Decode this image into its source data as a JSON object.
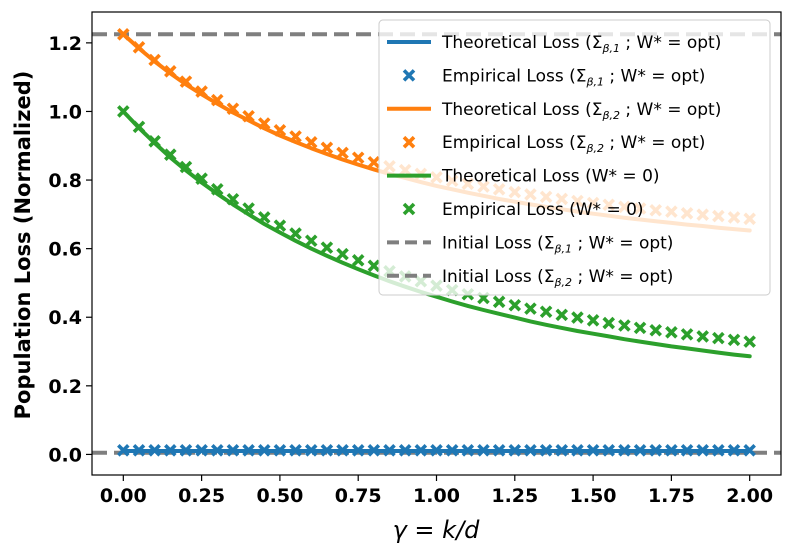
{
  "chart_data": {
    "type": "line",
    "title": "",
    "xlabel": "γ = k/d",
    "ylabel": "Population Loss (Normalized)",
    "xlim": [
      -0.1,
      2.1
    ],
    "ylim": [
      -0.06,
      1.29
    ],
    "x_ticks": [
      0.0,
      0.25,
      0.5,
      0.75,
      1.0,
      1.25,
      1.5,
      1.75,
      2.0
    ],
    "x_tick_labels": [
      "0.00",
      "0.25",
      "0.50",
      "0.75",
      "1.00",
      "1.25",
      "1.50",
      "1.75",
      "2.00"
    ],
    "y_ticks": [
      0.0,
      0.2,
      0.4,
      0.6,
      0.8,
      1.0,
      1.2
    ],
    "y_tick_labels": [
      "0.0",
      "0.2",
      "0.4",
      "0.6",
      "0.8",
      "1.0",
      "1.2"
    ],
    "grid": false,
    "legend_position": "top-right",
    "x": [
      0.0,
      0.05,
      0.1,
      0.15,
      0.2,
      0.25,
      0.3,
      0.35,
      0.4,
      0.45,
      0.5,
      0.55,
      0.6,
      0.65,
      0.7,
      0.75,
      0.8,
      0.85,
      0.9,
      0.95,
      1.0,
      1.05,
      1.1,
      1.15,
      1.2,
      1.25,
      1.3,
      1.35,
      1.4,
      1.45,
      1.5,
      1.55,
      1.6,
      1.65,
      1.7,
      1.75,
      1.8,
      1.85,
      1.9,
      1.95,
      2.0
    ],
    "series": [
      {
        "name": "Theoretical Loss",
        "label_suffix": "β,1 ; W* = opt",
        "kind": "line",
        "color": "#1f77b4",
        "values": [
          0.01,
          0.01,
          0.01,
          0.01,
          0.01,
          0.01,
          0.01,
          0.01,
          0.01,
          0.01,
          0.01,
          0.01,
          0.01,
          0.01,
          0.01,
          0.01,
          0.01,
          0.01,
          0.01,
          0.01,
          0.01,
          0.01,
          0.01,
          0.01,
          0.01,
          0.01,
          0.01,
          0.01,
          0.01,
          0.01,
          0.01,
          0.01,
          0.01,
          0.01,
          0.01,
          0.01,
          0.01,
          0.01,
          0.01,
          0.01,
          0.01
        ]
      },
      {
        "name": "Empirical Loss",
        "label_suffix": "β,1 ; W* = opt",
        "kind": "marker",
        "color": "#1f77b4",
        "values": [
          0.012,
          0.012,
          0.012,
          0.012,
          0.012,
          0.012,
          0.012,
          0.012,
          0.012,
          0.012,
          0.012,
          0.012,
          0.012,
          0.012,
          0.012,
          0.012,
          0.012,
          0.012,
          0.012,
          0.012,
          0.012,
          0.012,
          0.012,
          0.012,
          0.012,
          0.012,
          0.012,
          0.012,
          0.012,
          0.012,
          0.012,
          0.012,
          0.012,
          0.012,
          0.012,
          0.012,
          0.012,
          0.012,
          0.012,
          0.012,
          0.012
        ]
      },
      {
        "name": "Theoretical Loss",
        "label_suffix": "β,2 ; W* = opt",
        "kind": "line",
        "color": "#ff7f0e",
        "values": [
          1.225,
          1.184,
          1.146,
          1.111,
          1.079,
          1.05,
          1.023,
          0.997,
          0.974,
          0.951,
          0.93,
          0.911,
          0.893,
          0.876,
          0.86,
          0.845,
          0.831,
          0.818,
          0.806,
          0.794,
          0.783,
          0.773,
          0.763,
          0.754,
          0.745,
          0.737,
          0.729,
          0.722,
          0.715,
          0.708,
          0.702,
          0.696,
          0.69,
          0.685,
          0.68,
          0.675,
          0.67,
          0.666,
          0.661,
          0.657,
          0.653
        ]
      },
      {
        "name": "Empirical Loss",
        "label_suffix": "β,2 ; W* = opt",
        "kind": "marker",
        "color": "#ff7f0e",
        "values": [
          1.225,
          1.187,
          1.15,
          1.117,
          1.087,
          1.058,
          1.033,
          1.008,
          0.986,
          0.965,
          0.945,
          0.927,
          0.91,
          0.894,
          0.879,
          0.865,
          0.852,
          0.84,
          0.829,
          0.818,
          0.808,
          0.798,
          0.789,
          0.781,
          0.773,
          0.765,
          0.758,
          0.751,
          0.745,
          0.739,
          0.733,
          0.728,
          0.722,
          0.717,
          0.712,
          0.708,
          0.703,
          0.699,
          0.695,
          0.691,
          0.687
        ]
      },
      {
        "name": "Theoretical Loss",
        "label_suffix": "W* = 0",
        "kind": "line",
        "color": "#2ca02c",
        "values": [
          1.0,
          0.952,
          0.908,
          0.866,
          0.828,
          0.793,
          0.76,
          0.729,
          0.7,
          0.672,
          0.647,
          0.623,
          0.6,
          0.579,
          0.559,
          0.54,
          0.522,
          0.505,
          0.489,
          0.474,
          0.46,
          0.446,
          0.433,
          0.421,
          0.41,
          0.399,
          0.388,
          0.378,
          0.369,
          0.36,
          0.352,
          0.344,
          0.336,
          0.329,
          0.322,
          0.315,
          0.309,
          0.303,
          0.297,
          0.291,
          0.286
        ]
      },
      {
        "name": "Empirical Loss",
        "label_suffix": "W* = 0",
        "kind": "marker",
        "color": "#2ca02c",
        "values": [
          1.0,
          0.955,
          0.913,
          0.874,
          0.838,
          0.804,
          0.773,
          0.744,
          0.717,
          0.691,
          0.667,
          0.644,
          0.623,
          0.603,
          0.584,
          0.566,
          0.55,
          0.534,
          0.519,
          0.505,
          0.492,
          0.479,
          0.467,
          0.456,
          0.445,
          0.435,
          0.425,
          0.416,
          0.407,
          0.399,
          0.391,
          0.383,
          0.376,
          0.369,
          0.362,
          0.356,
          0.35,
          0.344,
          0.339,
          0.334,
          0.329
        ]
      },
      {
        "name": "Initial Loss",
        "label_suffix": "β,1 ; W* = opt",
        "kind": "hline",
        "color": "#7f7f7f",
        "value": 0.005
      },
      {
        "name": "Initial Loss",
        "label_suffix": "β,2 ; W* = opt",
        "kind": "hline",
        "color": "#7f7f7f",
        "value": 1.225
      }
    ],
    "legend": [
      {
        "name": "Theoretical Loss",
        "sigma": "β,1",
        "rest": "; W* = opt"
      },
      {
        "name": "Empirical Loss",
        "sigma": "β,1",
        "rest": "; W* = opt"
      },
      {
        "name": "Theoretical Loss",
        "sigma": "β,2",
        "rest": "; W* = opt"
      },
      {
        "name": "Empirical Loss",
        "sigma": "β,2",
        "rest": "; W* = opt"
      },
      {
        "name": "Theoretical Loss",
        "sigma": "",
        "rest": "W* = 0"
      },
      {
        "name": "Empirical Loss",
        "sigma": "",
        "rest": "W* = 0"
      },
      {
        "name": "Initial Loss",
        "sigma": "β,1",
        "rest": "; W* = opt"
      },
      {
        "name": "Initial Loss",
        "sigma": "β,2",
        "rest": "; W* = opt"
      }
    ]
  }
}
